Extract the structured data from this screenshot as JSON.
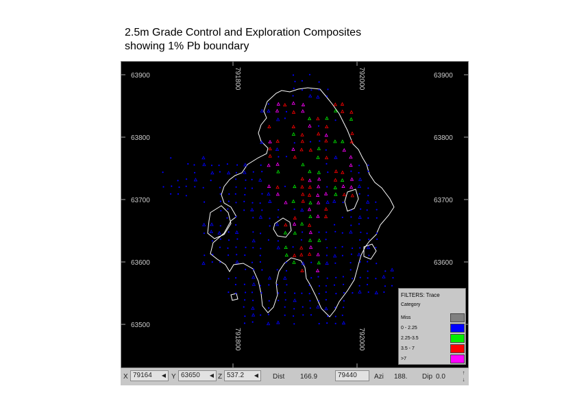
{
  "title": {
    "line1": "2.5m Grade Control and Exploration Composites",
    "line2": "showing 1% Pb boundary"
  },
  "map": {
    "y_labels": [
      "63900",
      "63800",
      "63700",
      "63600",
      "63500"
    ],
    "x_labels": [
      "791800",
      "792000"
    ],
    "background": "#000000",
    "boundary_color": "#ffffff"
  },
  "legend": {
    "title": "FILTERS: Trace",
    "subtitle": "Category",
    "items": [
      {
        "label": "Miss",
        "color": "#808080"
      },
      {
        "label": "0 - 2.25",
        "color": "#0000ff"
      },
      {
        "label": "2.25-3.5",
        "color": "#00ee00"
      },
      {
        "label": "3.5 - 7",
        "color": "#ff0000"
      },
      {
        "label": ">7",
        "color": "#ff00ff"
      }
    ]
  },
  "status": {
    "x_label": "X",
    "x_value": "79164",
    "y_label": "Y",
    "y_value": "63650",
    "z_label": "Z",
    "z_value": "537.2",
    "dist_label": "Dist",
    "dist_value": "166.9",
    "field4_value": "79440",
    "azi_label": "Azi",
    "azi_value": "188.",
    "dip_label": "Dip",
    "dip_value": "0.0"
  }
}
